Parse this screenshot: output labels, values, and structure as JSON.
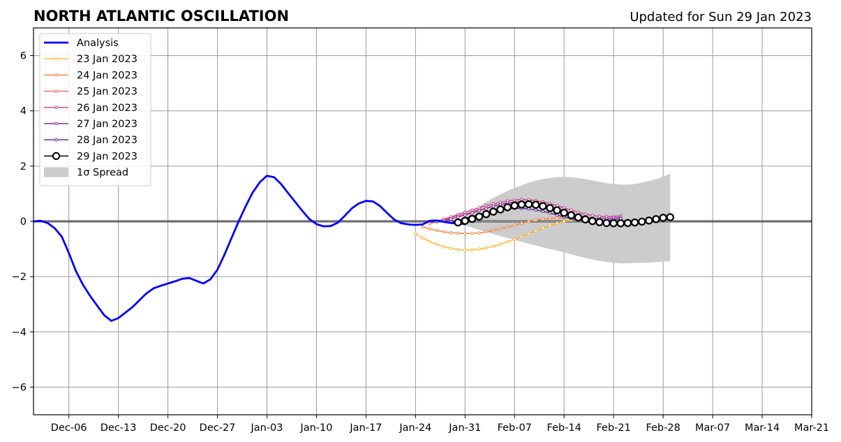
{
  "chart_data": {
    "type": "line",
    "title": "NORTH ATLANTIC OSCILLATION",
    "subtitle": "Updated for Sun 29 Jan 2023",
    "xlabel": "",
    "ylabel": "",
    "xlim": [
      "2022-12-01",
      "2023-03-21"
    ],
    "ylim": [
      -7,
      7
    ],
    "grid": true,
    "legend_position": "top-left",
    "x_ticks": [
      "Dec-06",
      "Dec-13",
      "Dec-20",
      "Dec-27",
      "Jan-03",
      "Jan-10",
      "Jan-17",
      "Jan-24",
      "Jan-31",
      "Feb-07",
      "Feb-14",
      "Feb-21",
      "Feb-28",
      "Mar-07",
      "Mar-14",
      "Mar-21"
    ],
    "x_tick_dates": [
      "2022-12-06",
      "2022-12-13",
      "2022-12-20",
      "2022-12-27",
      "2023-01-03",
      "2023-01-10",
      "2023-01-17",
      "2023-01-24",
      "2023-01-31",
      "2023-02-07",
      "2023-02-14",
      "2023-02-21",
      "2023-02-28",
      "2023-03-07",
      "2023-03-14",
      "2023-03-21"
    ],
    "y_ticks": [
      -6,
      -4,
      -2,
      0,
      2,
      4,
      6
    ],
    "y_tick_labels": [
      "−6",
      "−4",
      "−2",
      "0",
      "2",
      "4",
      "6"
    ],
    "analysis": {
      "name": "Analysis",
      "color": "#0000ff",
      "start": "2022-12-01",
      "values": [
        0.0,
        0.02,
        -0.06,
        -0.25,
        -0.55,
        -1.15,
        -1.8,
        -2.3,
        -2.7,
        -3.05,
        -3.4,
        -3.6,
        -3.5,
        -3.3,
        -3.1,
        -2.85,
        -2.6,
        -2.42,
        -2.33,
        -2.25,
        -2.17,
        -2.08,
        -2.05,
        -2.15,
        -2.25,
        -2.1,
        -1.75,
        -1.2,
        -0.6,
        0.0,
        0.55,
        1.05,
        1.42,
        1.65,
        1.6,
        1.35,
        1.02,
        0.7,
        0.38,
        0.08,
        -0.1,
        -0.18,
        -0.17,
        -0.05,
        0.2,
        0.47,
        0.65,
        0.74,
        0.72,
        0.55,
        0.3,
        0.06,
        -0.07,
        -0.11,
        -0.13,
        -0.11,
        0.02,
        0.03,
        -0.02,
        -0.06,
        -0.08,
        -0.1
      ]
    },
    "forecasts": [
      {
        "name": "23 Jan 2023",
        "color": "#f5b531",
        "start": "2023-01-24",
        "values": [
          -0.45,
          -0.6,
          -0.73,
          -0.83,
          -0.92,
          -0.98,
          -1.02,
          -1.04,
          -1.03,
          -1.0,
          -0.96,
          -0.9,
          -0.83,
          -0.74,
          -0.65,
          -0.55,
          -0.45,
          -0.34,
          -0.24,
          -0.15,
          -0.07,
          0.0,
          0.05,
          0.09
        ]
      },
      {
        "name": "24 Jan 2023",
        "color": "#ef8245",
        "start": "2023-01-25",
        "values": [
          -0.2,
          -0.27,
          -0.33,
          -0.38,
          -0.41,
          -0.43,
          -0.44,
          -0.44,
          -0.42,
          -0.38,
          -0.33,
          -0.27,
          -0.21,
          -0.14,
          -0.07,
          -0.01,
          0.04,
          0.08,
          0.11,
          0.13,
          0.14,
          0.13,
          0.1,
          0.06
        ]
      },
      {
        "name": "25 Jan 2023",
        "color": "#e0606e",
        "start": "2023-01-26",
        "values": [
          -0.08,
          -0.02,
          0.05,
          0.13,
          0.2,
          0.27,
          0.34,
          0.41,
          0.48,
          0.55,
          0.61,
          0.66,
          0.7,
          0.71,
          0.7,
          0.66,
          0.6,
          0.53,
          0.45,
          0.38,
          0.3,
          0.22,
          0.16,
          0.12
        ]
      },
      {
        "name": "26 Jan 2023",
        "color": "#c0438f",
        "start": "2023-01-27",
        "values": [
          0.0,
          0.08,
          0.16,
          0.25,
          0.33,
          0.41,
          0.49,
          0.57,
          0.63,
          0.69,
          0.74,
          0.77,
          0.79,
          0.78,
          0.75,
          0.7,
          0.64,
          0.57,
          0.49,
          0.41,
          0.33,
          0.26,
          0.21,
          0.18,
          0.17,
          0.18,
          0.2
        ]
      },
      {
        "name": "27 Jan 2023",
        "color": "#8e2a9a",
        "start": "2023-01-28",
        "values": [
          0.02,
          0.08,
          0.15,
          0.23,
          0.31,
          0.39,
          0.47,
          0.55,
          0.61,
          0.66,
          0.69,
          0.7,
          0.69,
          0.65,
          0.6,
          0.53,
          0.45,
          0.37,
          0.29,
          0.22,
          0.16,
          0.12,
          0.1,
          0.1,
          0.12,
          0.15
        ]
      },
      {
        "name": "28 Jan 2023",
        "color": "#5a1f96",
        "start": "2023-01-29",
        "values": [
          -0.02,
          0.04,
          0.11,
          0.18,
          0.25,
          0.31,
          0.37,
          0.42,
          0.45,
          0.47,
          0.47,
          0.45,
          0.41,
          0.36,
          0.3,
          0.23,
          0.16,
          0.1,
          0.05,
          0.02,
          0.01,
          0.01,
          0.03,
          0.06,
          0.09
        ]
      }
    ],
    "current_forecast": {
      "name": "29 Jan 2023",
      "color": "#000000",
      "start": "2023-01-30",
      "values": [
        -0.04,
        0.02,
        0.09,
        0.17,
        0.26,
        0.35,
        0.43,
        0.51,
        0.57,
        0.61,
        0.62,
        0.6,
        0.55,
        0.48,
        0.4,
        0.31,
        0.22,
        0.14,
        0.07,
        0.01,
        -0.03,
        -0.06,
        -0.07,
        -0.07,
        -0.06,
        -0.04,
        -0.01,
        0.03,
        0.08,
        0.13,
        0.15
      ]
    },
    "spread": {
      "name": "1σ Spread",
      "color": "#cccccc",
      "start": "2023-01-30",
      "upper": [
        0.0,
        0.2,
        0.38,
        0.55,
        0.7,
        0.85,
        0.98,
        1.1,
        1.21,
        1.31,
        1.4,
        1.47,
        1.53,
        1.57,
        1.6,
        1.61,
        1.6,
        1.57,
        1.53,
        1.48,
        1.43,
        1.38,
        1.35,
        1.33,
        1.33,
        1.35,
        1.4,
        1.46,
        1.53,
        1.62,
        1.72
      ],
      "lower": [
        -0.05,
        -0.14,
        -0.23,
        -0.31,
        -0.39,
        -0.46,
        -0.53,
        -0.6,
        -0.67,
        -0.74,
        -0.81,
        -0.87,
        -0.94,
        -1.0,
        -1.06,
        -1.12,
        -1.19,
        -1.26,
        -1.32,
        -1.38,
        -1.43,
        -1.47,
        -1.5,
        -1.52,
        -1.52,
        -1.51,
        -1.5,
        -1.49,
        -1.47,
        -1.46,
        -1.44
      ]
    }
  }
}
